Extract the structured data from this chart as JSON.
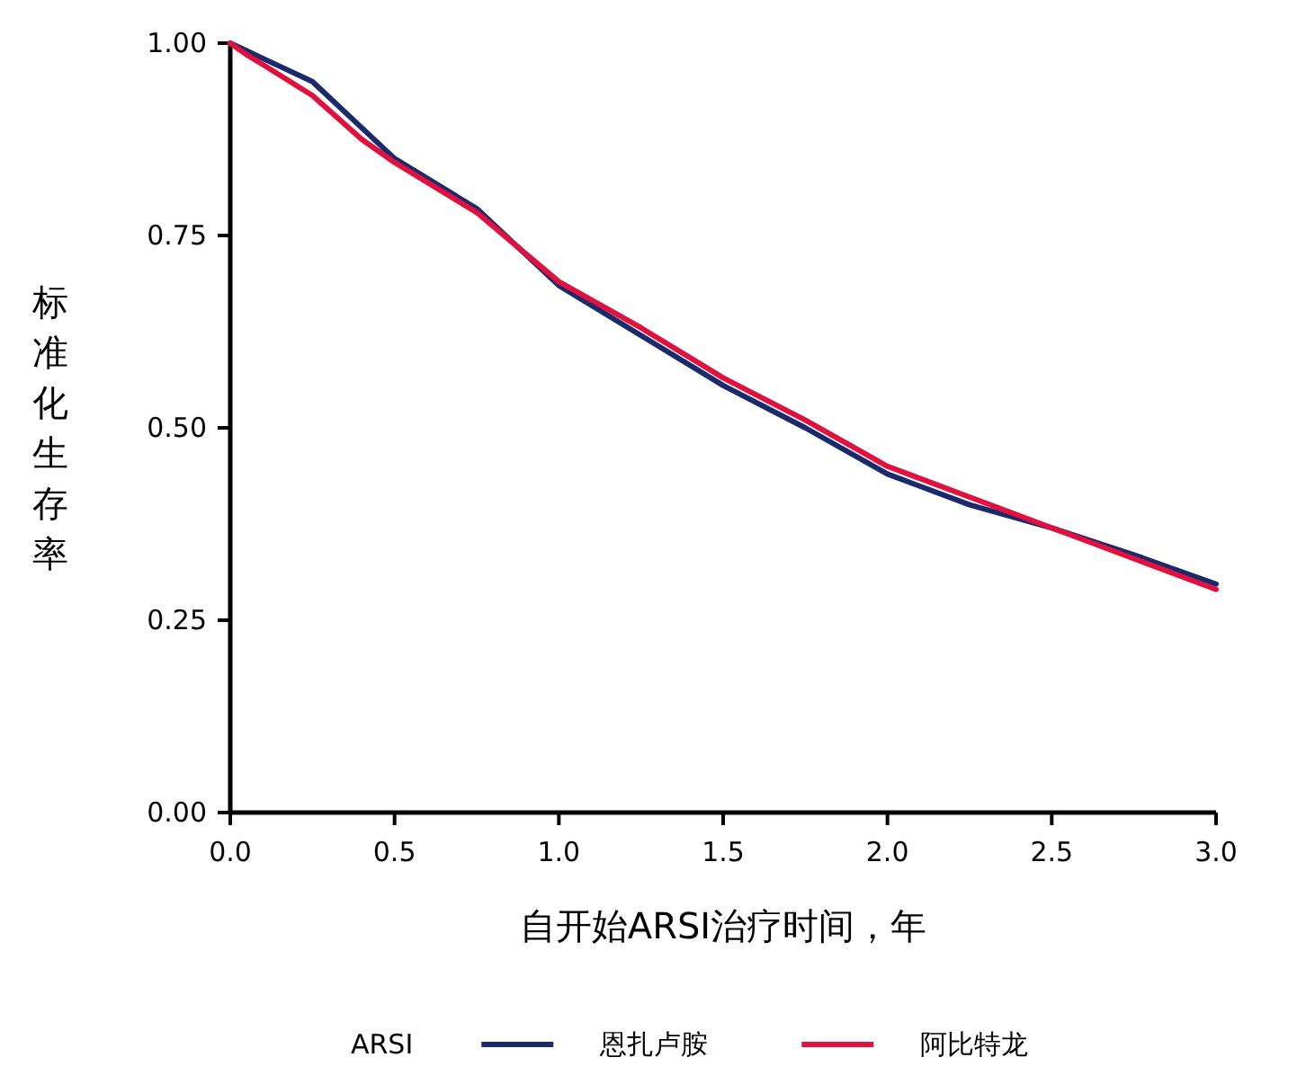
{
  "chart_data": {
    "type": "line",
    "xlabel": "自开始ARSI治疗时间，年",
    "ylabel": "标准化生存率",
    "legend_title": "ARSI",
    "legend": "bottom",
    "grid": false,
    "marker": "none",
    "line_style": "solid",
    "xlim": [
      0,
      3
    ],
    "ylim": [
      0,
      1
    ],
    "xticks": [
      {
        "value": 0,
        "label": "0.0"
      },
      {
        "value": 0.5,
        "label": "0.5"
      },
      {
        "value": 1,
        "label": "1.0"
      },
      {
        "value": 1.5,
        "label": "1.5"
      },
      {
        "value": 2,
        "label": "2.0"
      },
      {
        "value": 2.5,
        "label": "2.5"
      },
      {
        "value": 3,
        "label": "3.0"
      }
    ],
    "yticks": [
      {
        "value": 0,
        "label": "0.00"
      },
      {
        "value": 0.25,
        "label": "0.25"
      },
      {
        "value": 0.5,
        "label": "0.50"
      },
      {
        "value": 0.75,
        "label": "0.75"
      },
      {
        "value": 1,
        "label": "1.00"
      }
    ],
    "x": [
      0,
      0.05,
      0.1,
      0.25,
      0.4,
      0.5,
      0.75,
      1,
      1.25,
      1.5,
      1.75,
      2,
      2.25,
      2.5,
      2.75,
      3
    ],
    "series": [
      {
        "name": "恩扎卢胺",
        "color": "#1a2a6c",
        "values": [
          1,
          0.99,
          0.98,
          0.95,
          0.89,
          0.85,
          0.785,
          0.685,
          0.62,
          0.555,
          0.5,
          0.44,
          0.4,
          0.37,
          0.335,
          0.297
        ]
      },
      {
        "name": "阿比特龙",
        "color": "#e0103f",
        "values": [
          1,
          0.985,
          0.972,
          0.932,
          0.875,
          0.845,
          0.78,
          0.69,
          0.63,
          0.565,
          0.51,
          0.45,
          0.41,
          0.37,
          0.33,
          0.29
        ]
      }
    ]
  }
}
